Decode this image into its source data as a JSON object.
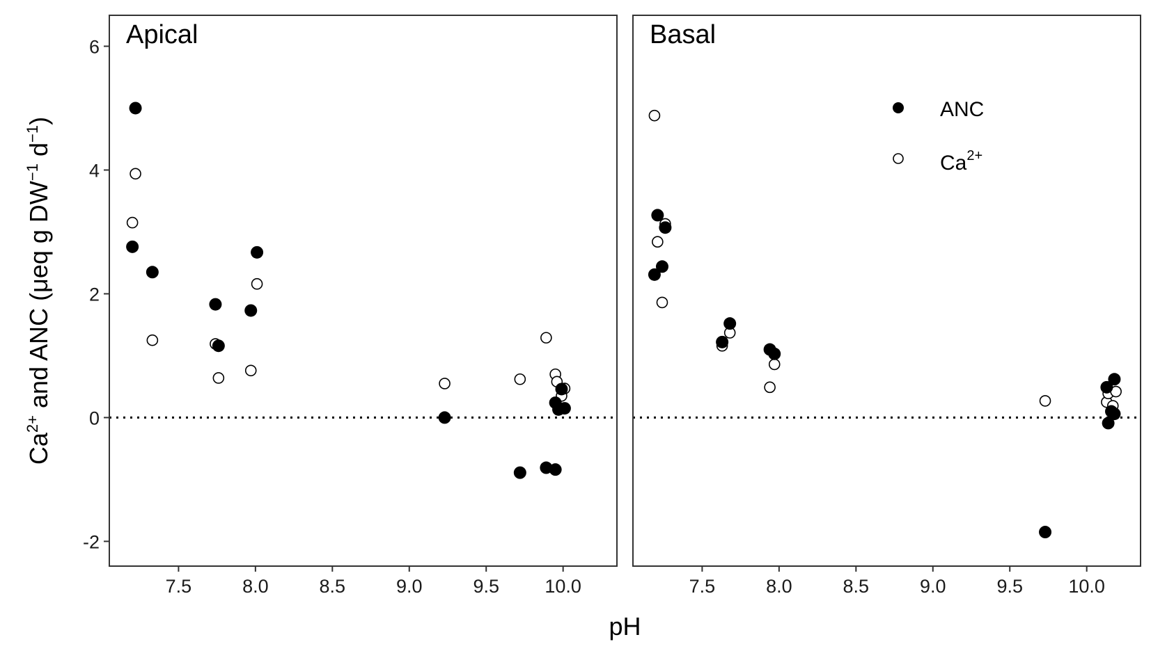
{
  "chart_data": {
    "type": "scatter",
    "xlabel": "pH",
    "ylabel": {
      "parts": [
        "Ca",
        "2+",
        " and ANC (",
        "μ",
        "eq g DW",
        "−1",
        " d",
        "−1",
        ")"
      ]
    },
    "xlim": [
      7.05,
      10.35
    ],
    "ylim": [
      -2.4,
      6.5
    ],
    "x_ticks": [
      "7.5",
      "8.0",
      "8.5",
      "9.0",
      "9.5",
      "10.0"
    ],
    "y_ticks": [
      "6",
      "4",
      "2",
      "0",
      "-2"
    ],
    "reference_line": {
      "y": 0,
      "style": "dotted"
    },
    "grid": false,
    "legend": {
      "placement": "top-right of Basal panel",
      "items": [
        {
          "label": "ANC",
          "marker": "filled-circle"
        },
        {
          "label": "Ca",
          "superscript": "2+",
          "marker": "open-circle"
        }
      ]
    },
    "panels": [
      {
        "title": "Apical",
        "series": [
          {
            "name": "ANC",
            "marker": "filled",
            "points": [
              [
                7.22,
                5.0
              ],
              [
                7.2,
                2.76
              ],
              [
                7.33,
                2.35
              ],
              [
                7.74,
                1.83
              ],
              [
                7.76,
                1.16
              ],
              [
                7.97,
                1.73
              ],
              [
                8.01,
                2.67
              ],
              [
                9.23,
                0.0
              ],
              [
                9.72,
                -0.89
              ],
              [
                9.89,
                -0.81
              ],
              [
                9.95,
                -0.84
              ],
              [
                9.95,
                0.24
              ],
              [
                9.97,
                0.13
              ],
              [
                9.99,
                0.46
              ],
              [
                10.01,
                0.15
              ]
            ]
          },
          {
            "name": "Ca2+",
            "marker": "open",
            "points": [
              [
                7.22,
                3.94
              ],
              [
                7.2,
                3.15
              ],
              [
                7.33,
                1.25
              ],
              [
                7.74,
                1.19
              ],
              [
                7.76,
                0.64
              ],
              [
                7.97,
                0.76
              ],
              [
                8.01,
                2.16
              ],
              [
                9.23,
                0.55
              ],
              [
                9.72,
                0.62
              ],
              [
                9.89,
                1.29
              ],
              [
                9.95,
                0.7
              ],
              [
                9.96,
                0.58
              ],
              [
                9.99,
                0.35
              ],
              [
                10.01,
                0.47
              ]
            ]
          }
        ]
      },
      {
        "title": "Basal",
        "series": [
          {
            "name": "ANC",
            "marker": "filled",
            "points": [
              [
                7.21,
                3.27
              ],
              [
                7.19,
                2.31
              ],
              [
                7.24,
                2.44
              ],
              [
                7.26,
                3.07
              ],
              [
                7.63,
                1.22
              ],
              [
                7.68,
                1.52
              ],
              [
                7.94,
                1.1
              ],
              [
                7.97,
                1.03
              ],
              [
                9.73,
                -1.85
              ],
              [
                10.13,
                0.49
              ],
              [
                10.14,
                -0.09
              ],
              [
                10.16,
                0.1
              ],
              [
                10.18,
                0.62
              ],
              [
                10.18,
                0.06
              ]
            ]
          },
          {
            "name": "Ca2+",
            "marker": "open",
            "points": [
              [
                7.19,
                4.88
              ],
              [
                7.21,
                2.84
              ],
              [
                7.24,
                1.86
              ],
              [
                7.26,
                3.13
              ],
              [
                7.63,
                1.16
              ],
              [
                7.68,
                1.37
              ],
              [
                7.94,
                0.49
              ],
              [
                7.97,
                0.86
              ],
              [
                9.73,
                0.27
              ],
              [
                10.13,
                0.25
              ],
              [
                10.14,
                0.39
              ],
              [
                10.17,
                0.19
              ],
              [
                10.19,
                0.42
              ]
            ]
          }
        ]
      }
    ]
  }
}
